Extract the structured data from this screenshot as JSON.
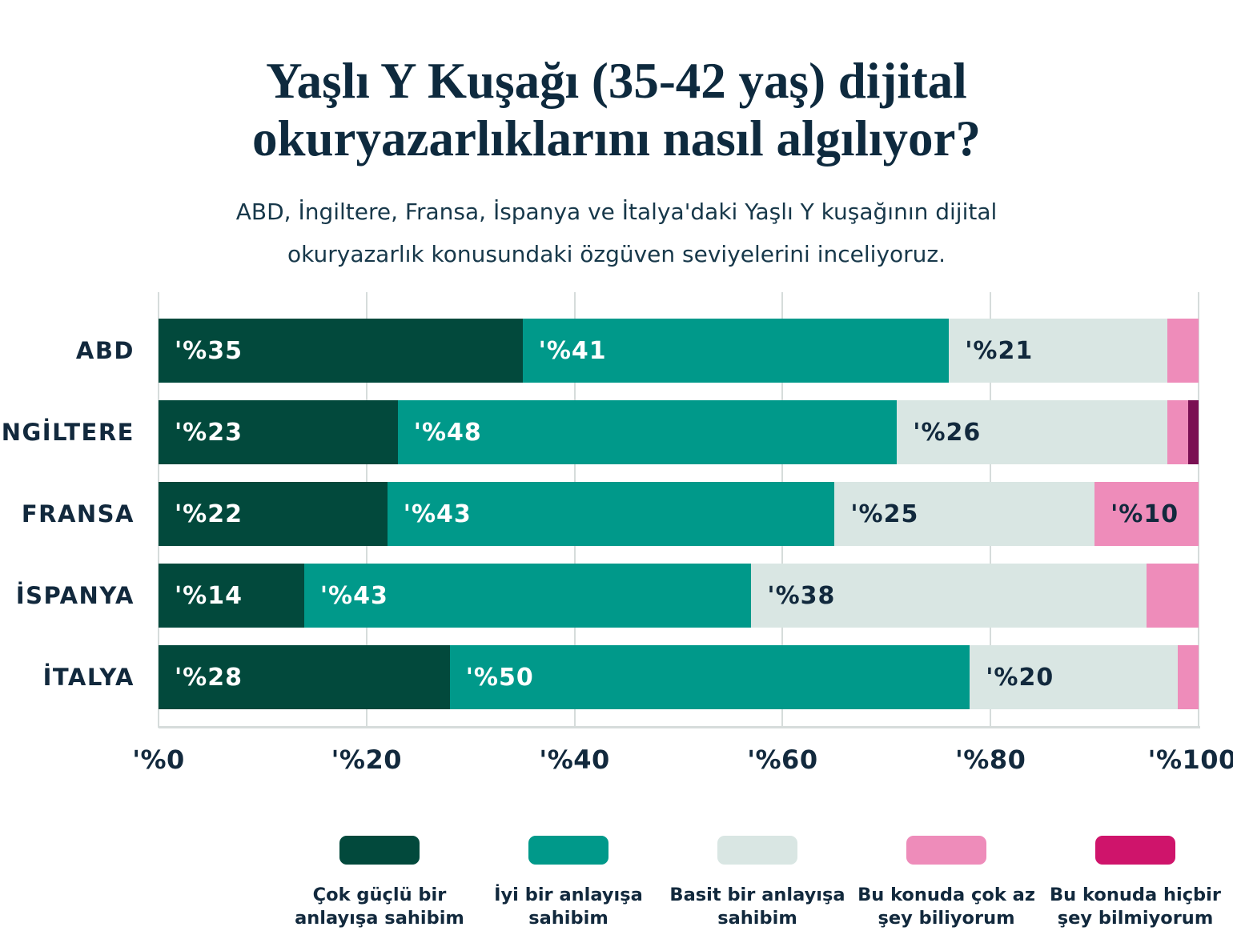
{
  "title": "Yaşlı Y Kuşağı (35-42 yaş) dijital okuryazarlıklarını nasıl algılıyor?",
  "subtitle": "ABD, İngiltere, Fransa, İspanya ve İtalya'daki Yaşlı Y kuşağının dijital okuryazarlık konusundaki özgüven seviyelerini inceliyoruz.",
  "chart_data": {
    "type": "bar",
    "orientation": "horizontal",
    "stacked": true,
    "categories": [
      "ABD",
      "İNGİLTERE",
      "FRANSA",
      "İSPANYA",
      "İTALYA"
    ],
    "series": [
      {
        "name": "Çok güçlü bir anlayışa sahibim",
        "color": "#02493c",
        "legend_color": "#02493c",
        "label_color": "#ffffff",
        "values": [
          35,
          23,
          22,
          14,
          28
        ]
      },
      {
        "name": "İyi bir anlayışa sahibim",
        "color": "#00998a",
        "legend_color": "#00998a",
        "label_color": "#ffffff",
        "values": [
          41,
          48,
          43,
          43,
          50
        ]
      },
      {
        "name": "Basit bir anlayışa sahibim",
        "color": "#d9e6e3",
        "legend_color": "#d9e6e3",
        "label_color": "#12293d",
        "values": [
          21,
          26,
          25,
          38,
          20
        ]
      },
      {
        "name": "Bu konuda çok az şey biliyorum",
        "color": "#ee8cba",
        "legend_color": "#ee8cba",
        "label_color": "#12293d",
        "values": [
          3,
          2,
          10,
          5,
          2
        ]
      },
      {
        "name": "Bu konuda hiçbir şey bilmiyorum",
        "color": "#7a1053",
        "legend_color": "#cf146b",
        "label_color": "#ffffff",
        "values": [
          0,
          1,
          0,
          0,
          0
        ]
      }
    ],
    "value_label_format": "'%{value}",
    "value_label_min": 10,
    "x_ticks": [
      "'%0",
      "'%20",
      "'%40",
      "'%60",
      "'%80",
      "'%100"
    ],
    "xlim": [
      0,
      100
    ],
    "grid": true,
    "legend_position": "bottom"
  },
  "colors": {
    "background": "#ffffff",
    "title_text": "#0e2a3e",
    "body_text": "#12293d",
    "gridline": "#d6dcdb"
  }
}
